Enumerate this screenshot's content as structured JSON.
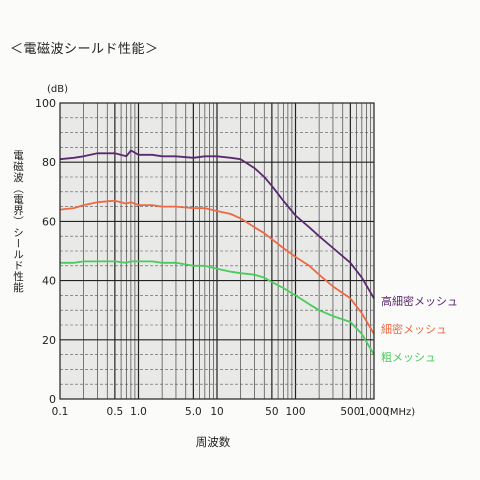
{
  "page_title": "＜電磁波シールド性能＞",
  "chart_data": {
    "type": "line",
    "title": "",
    "xlabel": "周波数",
    "xunit": "(MHz)",
    "ylabel": "電磁波（電界）シールド性能",
    "yunit": "(dB)",
    "xscale": "log",
    "xlim": [
      0.1,
      1000
    ],
    "ylim": [
      0,
      100
    ],
    "grid": true,
    "x_tick_labels": [
      {
        "label": "0.1",
        "value": 0.1
      },
      {
        "label": "0.5",
        "value": 0.5
      },
      {
        "label": "1.0",
        "value": 1.0
      },
      {
        "label": "5.0",
        "value": 5.0
      },
      {
        "label": "10",
        "value": 10
      },
      {
        "label": "50",
        "value": 50
      },
      {
        "label": "100",
        "value": 100
      },
      {
        "label": "500",
        "value": 500
      },
      {
        "label": "1,000",
        "value": 1000
      }
    ],
    "y_tick_labels": [
      {
        "label": "0",
        "value": 0
      },
      {
        "label": "20",
        "value": 20
      },
      {
        "label": "40",
        "value": 40
      },
      {
        "label": "60",
        "value": 60
      },
      {
        "label": "80",
        "value": 80
      },
      {
        "label": "100",
        "value": 100
      }
    ],
    "series": [
      {
        "name": "高細密メッシュ",
        "color": "#5b2a6e",
        "x": [
          0.1,
          0.15,
          0.2,
          0.3,
          0.5,
          0.7,
          0.8,
          1.0,
          1.5,
          2,
          3,
          5,
          7,
          10,
          15,
          20,
          30,
          40,
          50,
          70,
          100,
          150,
          200,
          300,
          500,
          700,
          1000
        ],
        "y": [
          81,
          81.5,
          82,
          83,
          83,
          82,
          84,
          82.5,
          82.5,
          82,
          82,
          81.5,
          82,
          82,
          81.5,
          81,
          78,
          75,
          72,
          67,
          62,
          58,
          55,
          51,
          46,
          41,
          34
        ]
      },
      {
        "name": "細密メッシュ",
        "color": "#ee6a45",
        "x": [
          0.1,
          0.15,
          0.2,
          0.3,
          0.5,
          0.7,
          0.8,
          1.0,
          1.5,
          2,
          3,
          5,
          7,
          10,
          15,
          20,
          30,
          40,
          50,
          70,
          100,
          150,
          200,
          300,
          500,
          700,
          1000
        ],
        "y": [
          64,
          64.5,
          65.5,
          66.5,
          67,
          66,
          66.5,
          65.5,
          65.5,
          65,
          65,
          64.5,
          64.5,
          63.5,
          62.5,
          61,
          58,
          56,
          54,
          51,
          48,
          45,
          42,
          38,
          34,
          29,
          22
        ]
      },
      {
        "name": "粗メッシュ",
        "color": "#49cc5c",
        "x": [
          0.1,
          0.15,
          0.2,
          0.3,
          0.5,
          0.7,
          0.8,
          1.0,
          1.5,
          2,
          3,
          5,
          7,
          10,
          15,
          20,
          30,
          40,
          50,
          70,
          100,
          150,
          200,
          300,
          500,
          700,
          1000
        ],
        "y": [
          46,
          46,
          46.5,
          46.5,
          46.5,
          46,
          46.5,
          46.5,
          46.5,
          46,
          46,
          45,
          45,
          44,
          43,
          42.5,
          42,
          41,
          39.5,
          37.5,
          35,
          32,
          30,
          28,
          26,
          22,
          15
        ]
      }
    ]
  }
}
